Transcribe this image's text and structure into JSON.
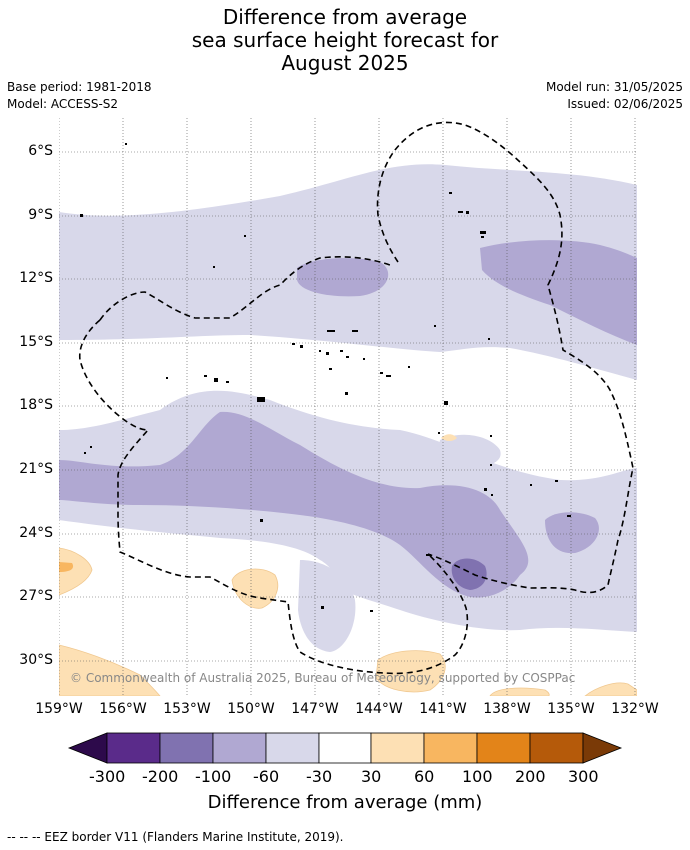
{
  "title": {
    "line1": "Difference from average",
    "line2": "sea surface height forecast for",
    "line3": "August 2025"
  },
  "meta": {
    "base_period": "Base period: 1981-2018",
    "model": "Model: ACCESS-S2",
    "model_run": "Model run: 31/05/2025",
    "issued": "Issued: 02/06/2025"
  },
  "map": {
    "lat_labels": [
      "6°S",
      "9°S",
      "12°S",
      "15°S",
      "18°S",
      "21°S",
      "24°S",
      "27°S",
      "30°S"
    ],
    "lon_labels": [
      "159°W",
      "156°W",
      "153°W",
      "150°W",
      "147°W",
      "144°W",
      "141°W",
      "138°W",
      "135°W",
      "132°W"
    ],
    "copyright": "© Commonwealth of Australia 2025, Bureau of Meteorology, supported by COSPPac",
    "colors": {
      "neg300": "#2d0a4b",
      "neg200": "#5a2b8a",
      "neg100": "#8072b0",
      "neg60": "#b0a8d2",
      "neg30": "#d8d8ea",
      "neutral": "#ffffff",
      "pos30": "#fde0b4",
      "pos60": "#f8b660",
      "pos100": "#e38419",
      "pos200": "#b55a0a",
      "pos300": "#7a3a07"
    }
  },
  "colorbar": {
    "ticks": [
      "-300",
      "-200",
      "-100",
      "-60",
      "-30",
      "30",
      "60",
      "100",
      "200",
      "300"
    ],
    "label": "Difference from average (mm)"
  },
  "footer": "--  --  -- EEZ border V11 (Flanders Marine Institute, 2019)."
}
